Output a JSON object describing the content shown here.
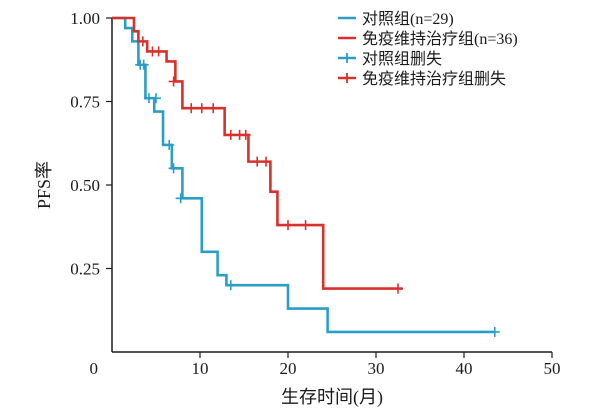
{
  "chart_data": {
    "type": "line",
    "subtype": "kaplan-meier",
    "xlabel": "生存时间(月)",
    "ylabel": "PFS率",
    "xlim": [
      0,
      50
    ],
    "ylim": [
      0,
      1.0
    ],
    "xticks": [
      0,
      10,
      20,
      30,
      40,
      50
    ],
    "xtick_labels": [
      "0",
      "10",
      "20",
      "30",
      "40",
      "50"
    ],
    "yticks": [
      0.25,
      0.5,
      0.75,
      1.0
    ],
    "ytick_labels": [
      "0.25",
      "0.50",
      "0.75",
      "1.00"
    ],
    "grid": false,
    "legend_position": "top-right",
    "legend": [
      {
        "label": "对照组(n=29)",
        "kind": "line",
        "color": "#2a9ec6"
      },
      {
        "label": "免疫维持治疗组(n=36)",
        "kind": "line",
        "color": "#d8312b"
      },
      {
        "label": "对照组删失",
        "kind": "censor",
        "color": "#2a9ec6"
      },
      {
        "label": "免疫维持治疗组删失",
        "kind": "censor",
        "color": "#d8312b"
      }
    ],
    "series": [
      {
        "name": "对照组",
        "color": "#2a9ec6",
        "x": [
          0,
          1.5,
          2.3,
          3.0,
          3.8,
          4.8,
          5.8,
          6.8,
          8.0,
          10.2,
          12.0,
          13.0,
          14.0,
          20.0,
          24.5,
          43.5
        ],
        "y": [
          1.0,
          0.97,
          0.93,
          0.86,
          0.76,
          0.72,
          0.62,
          0.55,
          0.46,
          0.3,
          0.23,
          0.2,
          0.2,
          0.13,
          0.06,
          0.06
        ],
        "censored": [
          {
            "x": 3.2,
            "y": 0.86
          },
          {
            "x": 3.6,
            "y": 0.86
          },
          {
            "x": 4.2,
            "y": 0.76
          },
          {
            "x": 5.0,
            "y": 0.76
          },
          {
            "x": 6.5,
            "y": 0.62
          },
          {
            "x": 7.0,
            "y": 0.55
          },
          {
            "x": 7.8,
            "y": 0.46
          },
          {
            "x": 13.5,
            "y": 0.2
          },
          {
            "x": 43.5,
            "y": 0.06
          }
        ]
      },
      {
        "name": "免疫维持治疗组",
        "color": "#d8312b",
        "x": [
          0,
          2.5,
          3.0,
          4.0,
          6.2,
          7.2,
          8.0,
          12.8,
          15.5,
          18.0,
          18.8,
          24.0,
          33.0
        ],
        "y": [
          1.0,
          0.96,
          0.93,
          0.9,
          0.87,
          0.81,
          0.73,
          0.65,
          0.57,
          0.48,
          0.38,
          0.19,
          0.19
        ],
        "censored": [
          {
            "x": 3.5,
            "y": 0.93
          },
          {
            "x": 4.6,
            "y": 0.9
          },
          {
            "x": 5.3,
            "y": 0.9
          },
          {
            "x": 7.0,
            "y": 0.81
          },
          {
            "x": 9.0,
            "y": 0.73
          },
          {
            "x": 10.2,
            "y": 0.73
          },
          {
            "x": 11.5,
            "y": 0.73
          },
          {
            "x": 13.5,
            "y": 0.65
          },
          {
            "x": 14.5,
            "y": 0.65
          },
          {
            "x": 15.2,
            "y": 0.65
          },
          {
            "x": 16.5,
            "y": 0.57
          },
          {
            "x": 17.5,
            "y": 0.57
          },
          {
            "x": 20.0,
            "y": 0.38
          },
          {
            "x": 22.0,
            "y": 0.38
          },
          {
            "x": 32.5,
            "y": 0.19
          }
        ]
      }
    ]
  }
}
